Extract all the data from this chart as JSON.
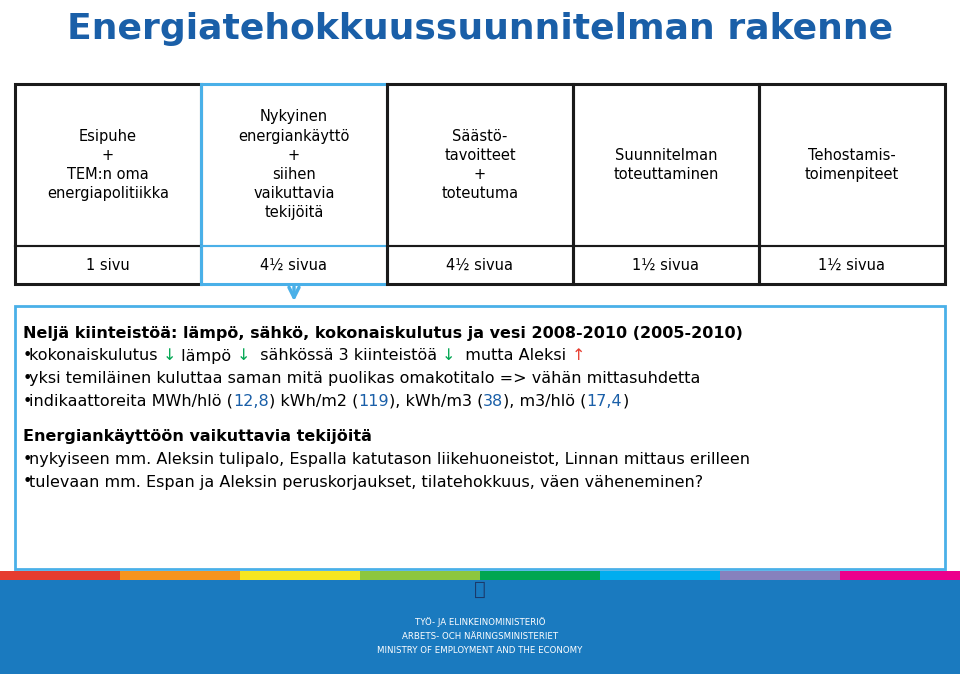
{
  "title": "Energiatehokkuussuunnitelman rakenne",
  "title_color": "#1a5fa8",
  "title_fontsize": 26,
  "bg_color": "#ffffff",
  "boxes": [
    {
      "text": "Esipuhe\n+\nTEM:n oma\nenergiapolitiikka",
      "bottom_text": "1 sivu",
      "highlight": false
    },
    {
      "text": "Nykyinen\nenergiankäyttö\n+\nsiihen\nvaikuttavia\ntekijöitä",
      "bottom_text": "4½ sivua",
      "highlight": true
    },
    {
      "text": "Säästö-\ntavoitteet\n+\ntoteutuma",
      "bottom_text": "4½ sivua",
      "highlight": false
    },
    {
      "text": "Suunnitelman\ntoteuttaminen",
      "bottom_text": "1½ sivua",
      "highlight": false
    },
    {
      "text": "Tehostamis-\ntoimenpiteet",
      "bottom_text": "1½ sivua",
      "highlight": false
    }
  ],
  "highlight_color": "#4ab0e8",
  "box_border_color": "#1a1a1a",
  "body_border_color": "#4ab0e8",
  "bottom_bg": "#1a7abf",
  "bottom_stripe_colors": [
    "#e63c2f",
    "#f7941d",
    "#f7e620",
    "#8dc63f",
    "#00a651",
    "#00adef",
    "#8781bd",
    "#ec008c"
  ],
  "body_line1_bold": "Neljä kiinteistöä: lämpö, sähkö, kokonaiskulutus ja vesi 2008-2010 (2005-2010)",
  "body_line2_pre": "kokonaiskulutus ",
  "body_line2_arr1": "↓",
  "body_line2_mid1": " lämpö ",
  "body_line2_arr2": "↓",
  "body_line2_mid2": "  sähkössä 3 kiinteistöä ",
  "body_line2_arr3": "↓",
  "body_line2_mid3": "  mutta Aleksi ",
  "body_line2_arr4": "↑",
  "body_line3": "yksi temiläinen kuluttaa saman mitä puolikas omakotitalo => vähän mittasuhdetta",
  "body_line4_parts": [
    {
      "text": "indikaattoreita MWh/hlö (",
      "color": "#000000"
    },
    {
      "text": "12,8",
      "color": "#1a5fa8"
    },
    {
      "text": ") kWh/m2 (",
      "color": "#000000"
    },
    {
      "text": "119",
      "color": "#1a5fa8"
    },
    {
      "text": "), kWh/m3 (",
      "color": "#000000"
    },
    {
      "text": "38",
      "color": "#1a5fa8"
    },
    {
      "text": "), m3/hlö (",
      "color": "#000000"
    },
    {
      "text": "17,4",
      "color": "#1a5fa8"
    },
    {
      "text": ")",
      "color": "#000000"
    }
  ],
  "body_line5_bold": "Energiankäyttöön vaikuttavia tekijöitä",
  "body_line6": "nykyiseen mm. Aleksin tulipalo, Espalla katutason liikehuoneistot, Linnan mittaus erilleen",
  "body_line7": "tulevaan mm. Espan ja Aleksin peruskorjaukset, tilatehokkuus, väen väheneminen?",
  "arrow_color": "#4ab0e8",
  "green_color": "#00a651",
  "red_color": "#e63c2f"
}
